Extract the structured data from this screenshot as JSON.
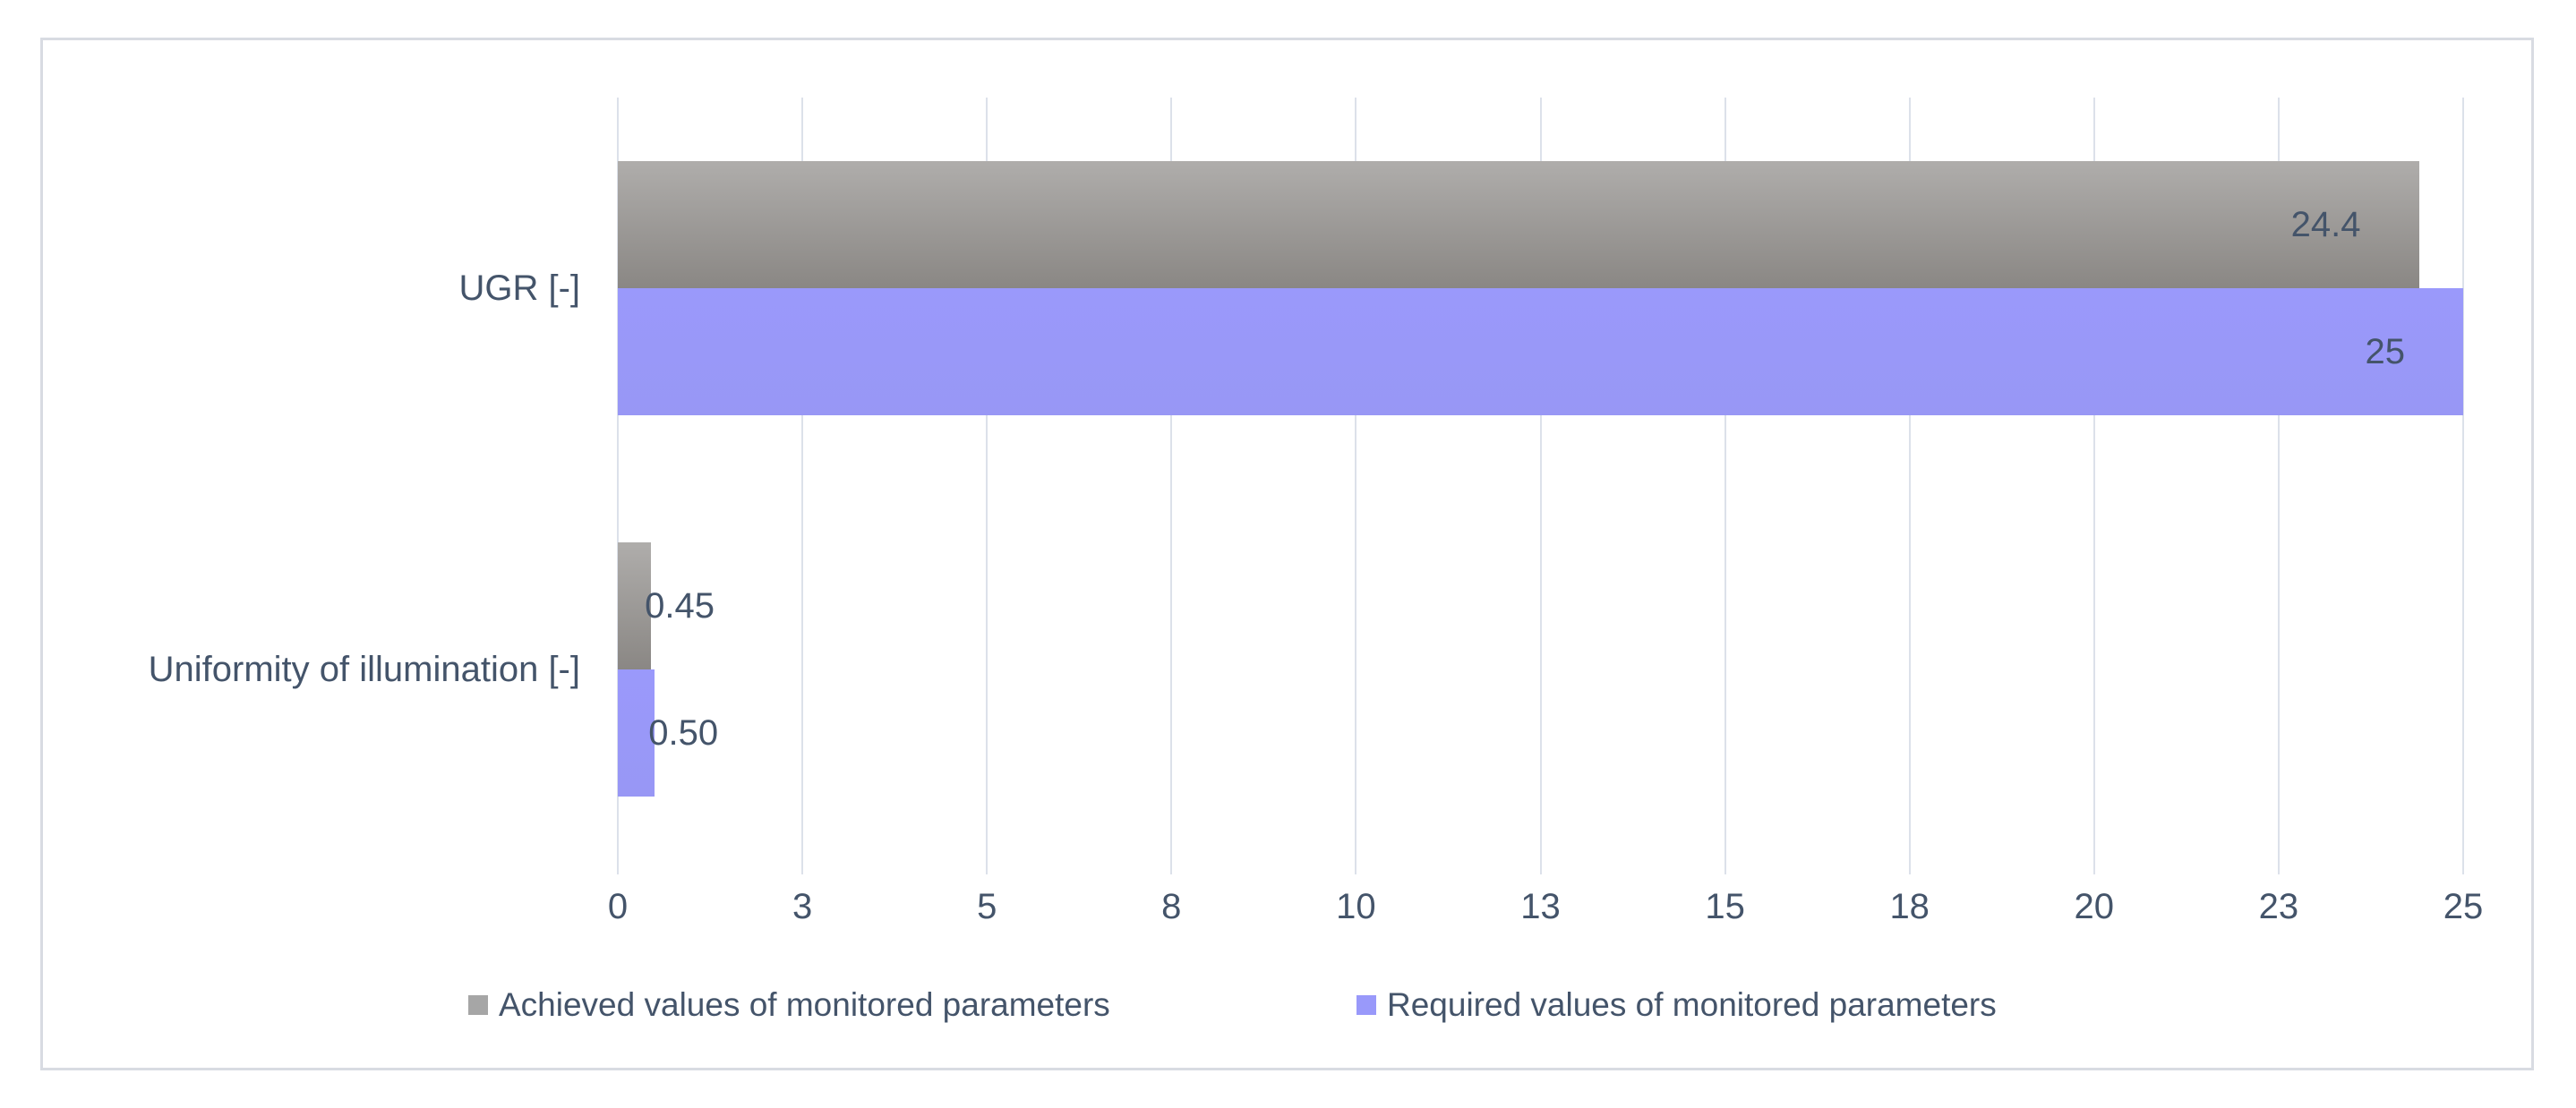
{
  "chart": {
    "frame_background": "#ffffff",
    "frame_border_color": "#d8dbe2",
    "text_color": "#44546a",
    "gridline_color": "#dce1ea"
  },
  "chart_data": {
    "type": "bar",
    "orientation": "horizontal",
    "title": "",
    "xlabel": "",
    "ylabel": "",
    "categories": [
      "UGR [-]",
      "Uniformity of illumination [-]"
    ],
    "series": [
      {
        "name": "Achieved values of monitored parameters",
        "values": [
          24.4,
          0.45
        ],
        "data_labels": [
          "24.4",
          "0.45"
        ],
        "color": "#a6a6a6",
        "gradient": [
          "#afadab",
          "#8a8784"
        ]
      },
      {
        "name": "Required values of monitored parameters",
        "values": [
          25,
          0.5
        ],
        "data_labels": [
          "25",
          "0.50"
        ],
        "color": "#9999fa",
        "gradient": [
          "#9a99fb",
          "#9897f5"
        ]
      }
    ],
    "xlim": [
      0,
      25
    ],
    "x_ticks": [
      0,
      2.5,
      5,
      7.5,
      10,
      12.5,
      15,
      17.5,
      20,
      22.5,
      25
    ],
    "x_tick_labels": [
      "0",
      "3",
      "5",
      "8",
      "10",
      "13",
      "15",
      "18",
      "20",
      "23",
      "25"
    ],
    "grid": true,
    "legend_position": "bottom"
  }
}
